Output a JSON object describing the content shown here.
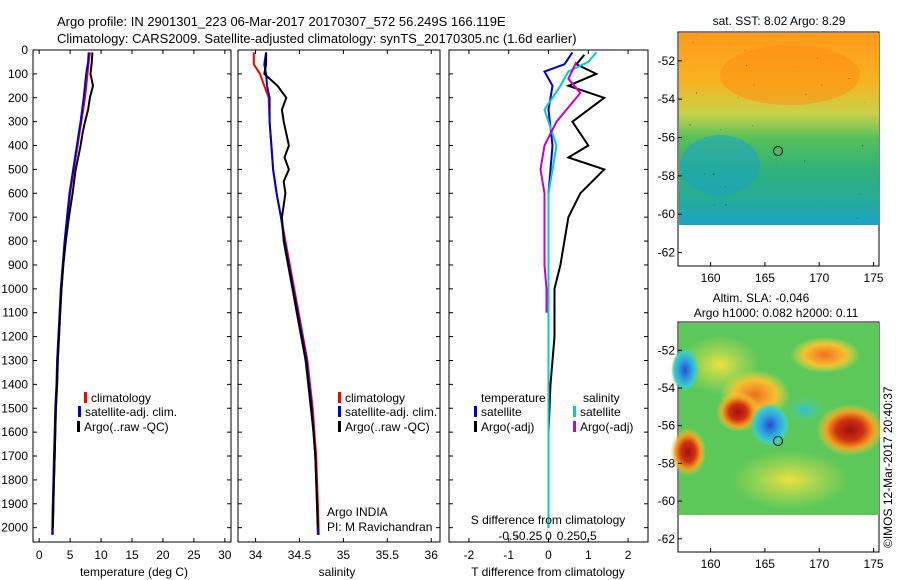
{
  "header": {
    "line1": "Argo profile: IN 2901301_223 06-Mar-2017 20170307_572 56.249S 166.119E",
    "line2": "Climatology: CARS2009. Satellite-adjusted climatology: synTS_20170305.nc (1.6d earlier)"
  },
  "credit": "©IMOS 12-Mar-2017 20:40:37",
  "chart_data": [
    {
      "type": "line",
      "xlabel": "temperature (deg C)",
      "xlim": [
        -1,
        31
      ],
      "xticks": [
        0,
        5,
        10,
        15,
        20,
        25,
        30
      ],
      "ylim": [
        2060,
        0
      ],
      "yticks": [
        0,
        100,
        200,
        300,
        400,
        500,
        600,
        700,
        800,
        900,
        1000,
        1100,
        1200,
        1300,
        1400,
        1500,
        1600,
        1700,
        1800,
        1900,
        2000
      ],
      "legend": [
        "climatology",
        "satellite-adj. clim.",
        "Argo(..raw -QC)"
      ],
      "legend_placement": "lower-right",
      "series": [
        {
          "name": "climatology",
          "color": "#ff0000",
          "points": [
            [
              8.2,
              10
            ],
            [
              8.0,
              50
            ],
            [
              7.8,
              100
            ],
            [
              7.4,
              200
            ],
            [
              6.8,
              300
            ],
            [
              6.2,
              400
            ],
            [
              5.6,
              500
            ],
            [
              5.0,
              600
            ],
            [
              4.6,
              700
            ],
            [
              4.2,
              800
            ],
            [
              3.9,
              900
            ],
            [
              3.6,
              1000
            ],
            [
              3.4,
              1100
            ],
            [
              3.2,
              1200
            ],
            [
              3.0,
              1300
            ],
            [
              2.9,
              1400
            ],
            [
              2.7,
              1500
            ],
            [
              2.6,
              1600
            ],
            [
              2.5,
              1700
            ],
            [
              2.4,
              1800
            ],
            [
              2.3,
              1900
            ],
            [
              2.2,
              2030
            ]
          ]
        },
        {
          "name": "satellite-adj. clim.",
          "color": "#0000cc",
          "points": [
            [
              8.0,
              10
            ],
            [
              7.9,
              50
            ],
            [
              7.6,
              100
            ],
            [
              7.2,
              200
            ],
            [
              6.7,
              300
            ],
            [
              6.1,
              400
            ],
            [
              5.5,
              500
            ],
            [
              4.9,
              600
            ],
            [
              4.5,
              700
            ],
            [
              4.1,
              800
            ],
            [
              3.8,
              900
            ],
            [
              3.5,
              1000
            ],
            [
              3.3,
              1100
            ],
            [
              3.1,
              1200
            ],
            [
              2.9,
              1300
            ],
            [
              2.8,
              1400
            ],
            [
              2.6,
              1500
            ],
            [
              2.5,
              1600
            ],
            [
              2.4,
              1700
            ],
            [
              2.3,
              1800
            ],
            [
              2.2,
              1900
            ],
            [
              2.1,
              2030
            ]
          ]
        },
        {
          "name": "Argo(..raw -QC)",
          "color": "#000000",
          "points": [
            [
              8.6,
              10
            ],
            [
              8.5,
              50
            ],
            [
              8.3,
              100
            ],
            [
              8.7,
              150
            ],
            [
              8.2,
              200
            ],
            [
              7.9,
              250
            ],
            [
              7.4,
              300
            ],
            [
              7.0,
              350
            ],
            [
              6.7,
              400
            ],
            [
              6.3,
              450
            ],
            [
              5.9,
              500
            ],
            [
              5.4,
              600
            ],
            [
              4.8,
              700
            ],
            [
              4.3,
              800
            ],
            [
              3.9,
              900
            ],
            [
              3.6,
              1000
            ],
            [
              3.4,
              1100
            ],
            [
              3.2,
              1200
            ],
            [
              3.0,
              1300
            ],
            [
              2.9,
              1400
            ],
            [
              2.7,
              1500
            ],
            [
              2.6,
              1600
            ],
            [
              2.5,
              1700
            ],
            [
              2.4,
              1800
            ],
            [
              2.3,
              1900
            ],
            [
              2.2,
              2000
            ]
          ]
        }
      ]
    },
    {
      "type": "line",
      "xlabel": "salinity",
      "xlim": [
        33.8,
        36.1
      ],
      "xticks": [
        34,
        34.5,
        35,
        35.5,
        36
      ],
      "ylim": [
        2060,
        0
      ],
      "legend": [
        "climatology",
        "satellite-adj. clim.",
        "Argo(..raw -QC)"
      ],
      "legend_placement": "lower-right",
      "annotation": [
        "Argo INDIA",
        "PI: M Ravichandran"
      ],
      "series": [
        {
          "name": "climatology",
          "color": "#ff0000",
          "points": [
            [
              33.98,
              10
            ],
            [
              33.98,
              60
            ],
            [
              34.05,
              100
            ],
            [
              34.1,
              150
            ],
            [
              34.15,
              200
            ],
            [
              34.16,
              300
            ],
            [
              34.18,
              400
            ],
            [
              34.2,
              500
            ],
            [
              34.24,
              600
            ],
            [
              34.29,
              700
            ],
            [
              34.34,
              800
            ],
            [
              34.39,
              900
            ],
            [
              34.44,
              1000
            ],
            [
              34.49,
              1100
            ],
            [
              34.54,
              1200
            ],
            [
              34.59,
              1300
            ],
            [
              34.62,
              1400
            ],
            [
              34.65,
              1500
            ],
            [
              34.67,
              1600
            ],
            [
              34.69,
              1700
            ],
            [
              34.7,
              1800
            ],
            [
              34.71,
              1900
            ],
            [
              34.72,
              2030
            ]
          ]
        },
        {
          "name": "satellite-adj. clim.",
          "color": "#0000cc",
          "points": [
            [
              34.12,
              10
            ],
            [
              34.1,
              60
            ],
            [
              34.12,
              100
            ],
            [
              34.13,
              150
            ],
            [
              34.16,
              200
            ],
            [
              34.16,
              300
            ],
            [
              34.18,
              400
            ],
            [
              34.2,
              500
            ],
            [
              34.24,
              600
            ],
            [
              34.29,
              700
            ],
            [
              34.33,
              800
            ],
            [
              34.38,
              900
            ],
            [
              34.43,
              1000
            ],
            [
              34.48,
              1100
            ],
            [
              34.53,
              1200
            ],
            [
              34.58,
              1300
            ],
            [
              34.61,
              1400
            ],
            [
              34.64,
              1500
            ],
            [
              34.66,
              1600
            ],
            [
              34.68,
              1700
            ],
            [
              34.69,
              1800
            ],
            [
              34.7,
              1900
            ],
            [
              34.71,
              2030
            ]
          ]
        },
        {
          "name": "Argo(..raw -QC)",
          "color": "#000000",
          "points": [
            [
              34.12,
              10
            ],
            [
              34.12,
              60
            ],
            [
              34.1,
              100
            ],
            [
              34.25,
              150
            ],
            [
              34.35,
              200
            ],
            [
              34.3,
              250
            ],
            [
              34.32,
              300
            ],
            [
              34.35,
              350
            ],
            [
              34.38,
              400
            ],
            [
              34.33,
              450
            ],
            [
              34.38,
              500
            ],
            [
              34.32,
              550
            ],
            [
              34.34,
              600
            ],
            [
              34.32,
              650
            ],
            [
              34.3,
              700
            ],
            [
              34.32,
              800
            ],
            [
              34.37,
              900
            ],
            [
              34.42,
              1000
            ],
            [
              34.47,
              1100
            ],
            [
              34.52,
              1200
            ],
            [
              34.57,
              1300
            ],
            [
              34.6,
              1400
            ],
            [
              34.63,
              1500
            ],
            [
              34.66,
              1600
            ],
            [
              34.68,
              1700
            ],
            [
              34.69,
              1800
            ],
            [
              34.7,
              1900
            ],
            [
              34.71,
              2000
            ]
          ]
        }
      ]
    },
    {
      "type": "line",
      "xlabel": "T difference from climatology",
      "xlim": [
        -2.5,
        2.5
      ],
      "xticks": [
        -2,
        -1,
        0,
        1,
        2
      ],
      "x2label": "S difference from climatology",
      "x2ticks": [
        "-0.5",
        "-0.25",
        "0",
        "0.25",
        "0.5"
      ],
      "ylim": [
        2060,
        0
      ],
      "legend_temperature_title": "temperature",
      "legend_salinity_title": "salinity",
      "legend": [
        "satellite",
        "Argo(-adj)",
        "satellite",
        "Argo(-adj)"
      ],
      "legend_placement": "lower-center",
      "series": [
        {
          "name": "satellite",
          "quantity": "temperature",
          "color": "#0000cc",
          "points": [
            [
              0.6,
              10
            ],
            [
              0.4,
              60
            ],
            [
              -0.1,
              90
            ],
            [
              0.1,
              150
            ],
            [
              0.0,
              250
            ],
            [
              0.1,
              400
            ],
            [
              0.0,
              600
            ],
            [
              0.0,
              800
            ],
            [
              0.0,
              1000
            ],
            [
              0.0,
              1200
            ],
            [
              0.0,
              1400
            ],
            [
              0.0,
              1600
            ],
            [
              0.0,
              1800
            ],
            [
              0.0,
              2000
            ]
          ]
        },
        {
          "name": "Argo(-adj)",
          "quantity": "temperature",
          "color": "#000000",
          "points": [
            [
              0.9,
              20
            ],
            [
              0.7,
              60
            ],
            [
              1.2,
              100
            ],
            [
              0.5,
              150
            ],
            [
              1.4,
              200
            ],
            [
              0.6,
              300
            ],
            [
              1.0,
              400
            ],
            [
              0.5,
              450
            ],
            [
              1.4,
              500
            ],
            [
              0.8,
              600
            ],
            [
              0.5,
              700
            ],
            [
              0.4,
              800
            ],
            [
              0.3,
              900
            ],
            [
              0.15,
              1000
            ],
            [
              0.15,
              1200
            ],
            [
              0.05,
              1400
            ],
            [
              0.0,
              1600
            ],
            [
              0.0,
              1800
            ],
            [
              0.0,
              2000
            ]
          ]
        },
        {
          "name": "satellite",
          "quantity": "salinity",
          "color": "#00cccc",
          "points": [
            [
              1.2,
              10
            ],
            [
              1.0,
              50
            ],
            [
              0.5,
              90
            ],
            [
              0.3,
              150
            ],
            [
              -0.1,
              250
            ],
            [
              0.2,
              400
            ],
            [
              0.1,
              500
            ],
            [
              0.0,
              600
            ],
            [
              0.0,
              800
            ],
            [
              0.0,
              1000
            ],
            [
              0.0,
              1200
            ],
            [
              0.0,
              1400
            ],
            [
              0.0,
              1600
            ],
            [
              0.0,
              1800
            ],
            [
              0.0,
              2000
            ]
          ]
        },
        {
          "name": "Argo(-adj)",
          "quantity": "salinity",
          "color": "#cc00cc",
          "points": [
            [
              0.7,
              50
            ],
            [
              0.5,
              120
            ],
            [
              0.8,
              180
            ],
            [
              0.2,
              300
            ],
            [
              -0.1,
              400
            ],
            [
              -0.2,
              500
            ],
            [
              -0.1,
              600
            ],
            [
              -0.1,
              700
            ],
            [
              -0.1,
              800
            ],
            [
              -0.1,
              900
            ],
            [
              -0.05,
              1000
            ],
            [
              -0.05,
              1100
            ]
          ]
        }
      ]
    },
    {
      "type": "heatmap",
      "title": "sat. SST: 8.02  Argo: 8.29",
      "xlim": [
        157,
        175.5
      ],
      "ylim": [
        -62.7,
        -50.5
      ],
      "xticks": [
        160,
        165,
        170,
        175
      ],
      "yticks": [
        -52,
        -54,
        -56,
        -58,
        -60,
        -62
      ],
      "data_extent_lat": [
        -60,
        -50.5
      ],
      "profile_marker": {
        "lon": 166.119,
        "lat": -56.249
      }
    },
    {
      "type": "heatmap",
      "title": "Altim. SLA: -0.046",
      "subtitle": "Argo h1000: 0.082  h2000: 0.11",
      "xlim": [
        157,
        175.5
      ],
      "ylim": [
        -62.7,
        -50.5
      ],
      "xticks": [
        160,
        165,
        170,
        175
      ],
      "yticks": [
        -52,
        -54,
        -56,
        -58,
        -60,
        -62
      ],
      "data_extent_lat": [
        -60,
        -50.5
      ],
      "profile_marker": {
        "lon": 166.119,
        "lat": -56.249
      }
    }
  ]
}
